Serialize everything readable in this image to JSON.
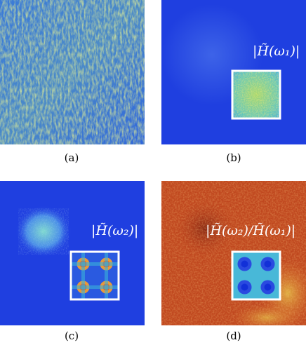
{
  "panels": [
    {
      "caption": "(a)",
      "overlay_label": ""
    },
    {
      "caption": "(b)",
      "overlay_label": "|H̃(ω₁)|"
    },
    {
      "caption": "(c)",
      "overlay_label": "|H̃(ω₂)|"
    },
    {
      "caption": "(d)",
      "overlay_label": "|H̃(ω₂)/H̃(ω₁)|"
    }
  ],
  "colors": {
    "blue": "#1f3fe0",
    "deep_blue": "#1230d8",
    "cyan": "#38c8e0",
    "yellow": "#e8d84a",
    "orange": "#d86a2a",
    "red_brown": "#b8401e",
    "inset_border": "#ffffff"
  }
}
